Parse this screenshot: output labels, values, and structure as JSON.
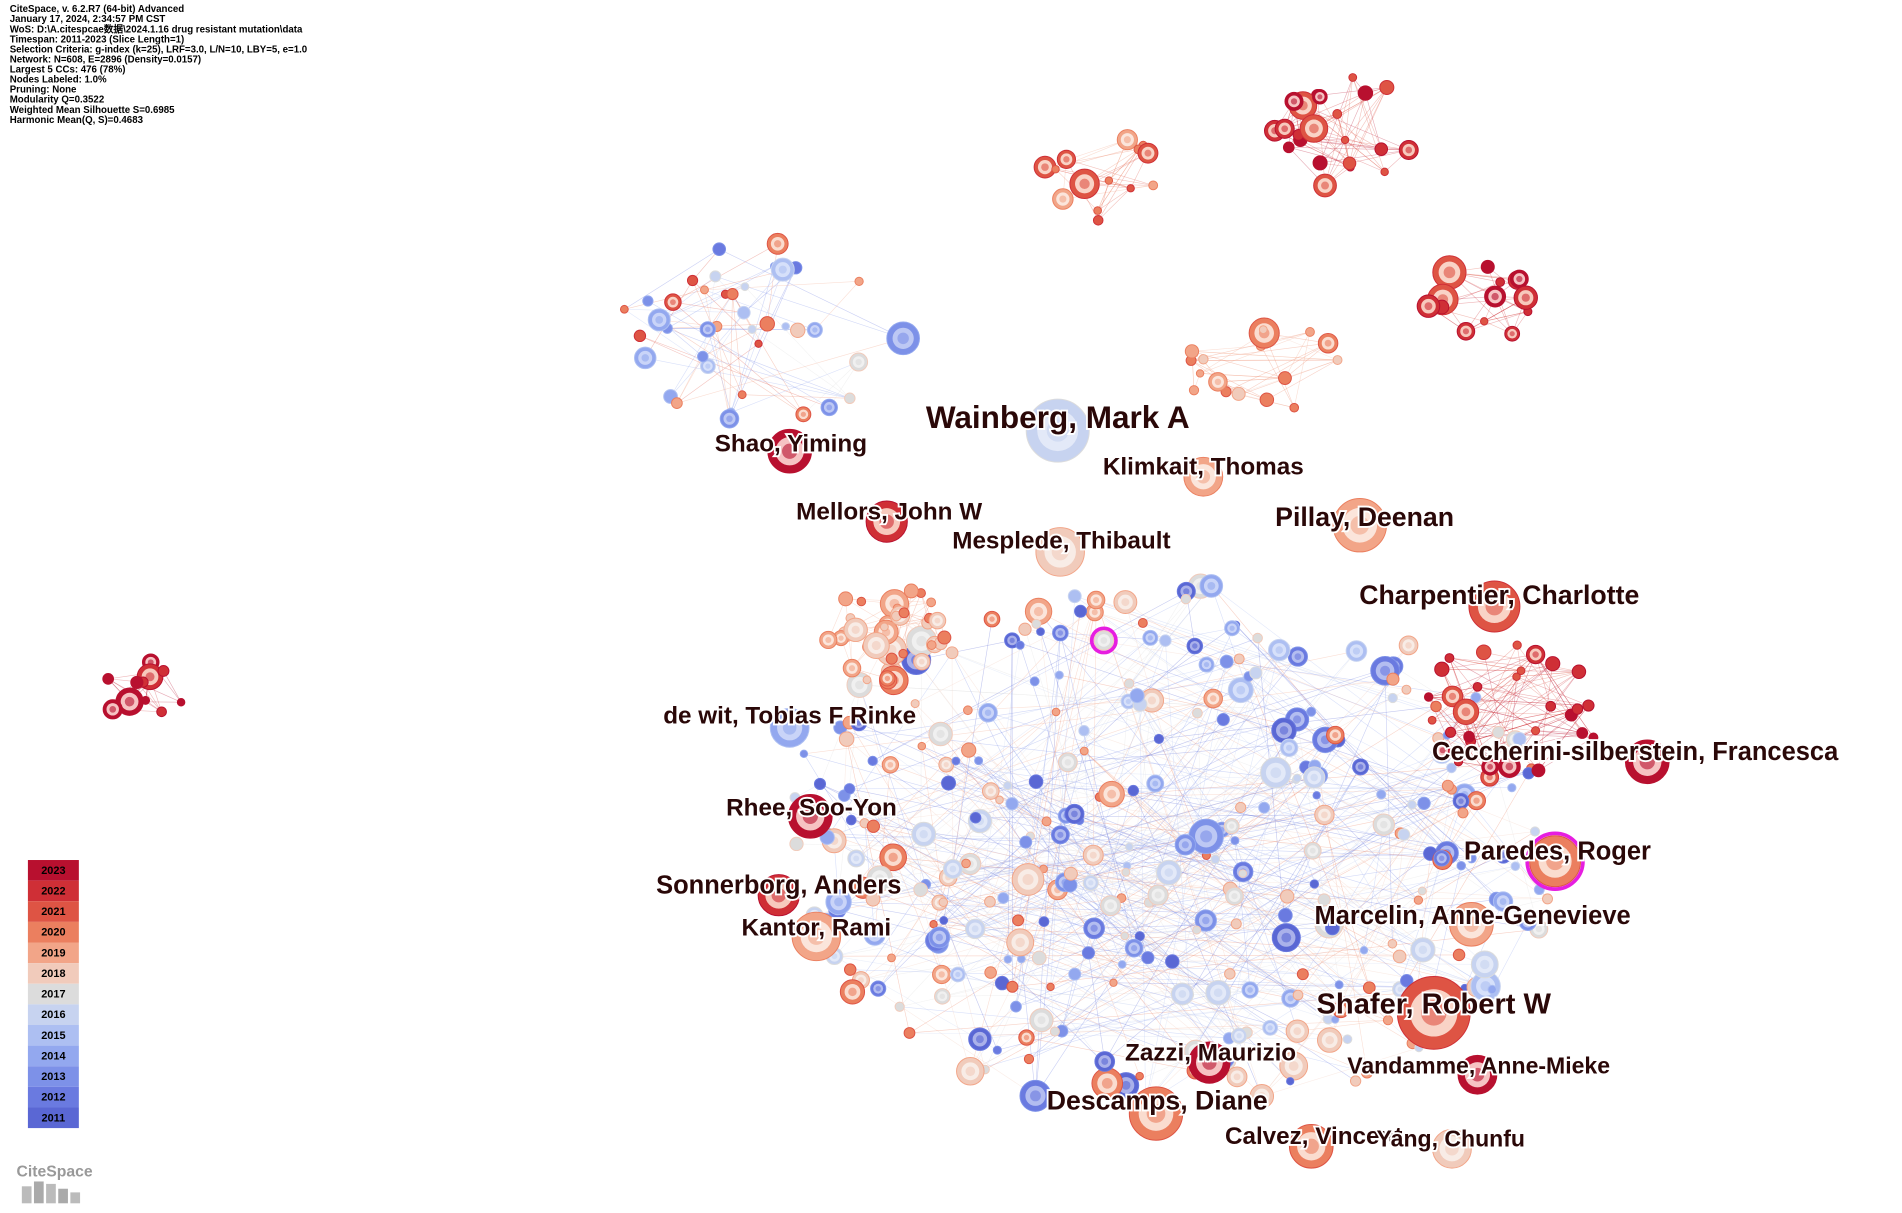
{
  "header": {
    "lines": [
      "CiteSpace, v. 6.2.R7 (64-bit) Advanced",
      "January 17, 2024, 2:34:57 PM CST",
      "WoS: D:\\A.citespcae数据\\2024.1.16 drug resistant mutation\\data",
      "Timespan: 2011-2023 (Slice Length=1)",
      "Selection Criteria: g-index (k=25), LRF=3.0, L/N=10, LBY=5, e=1.0",
      "Network: N=608, E=2896 (Density=0.0157)",
      "Largest 5 CCs: 476 (78%)",
      "Nodes Labeled: 1.0%",
      "Pruning: None",
      "Modularity Q=0.3522",
      "Weighted Mean Silhouette S=0.6985",
      "Harmonic Mean(Q, S)=0.4683"
    ]
  },
  "nodes": [
    {
      "label": "Wainberg, Mark A"
    },
    {
      "label": "Shao, Yiming"
    },
    {
      "label": "Klimkait, Thomas"
    },
    {
      "label": "Mellors, John W"
    },
    {
      "label": "Pillay, Deenan"
    },
    {
      "label": "Mesplede, Thibault"
    },
    {
      "label": "Charpentier, Charlotte"
    },
    {
      "label": "de wit, Tobias F Rinke"
    },
    {
      "label": "Ceccherini-silberstein, Francesca"
    },
    {
      "label": "Rhee, Soo-Yon"
    },
    {
      "label": "Paredes, Roger"
    },
    {
      "label": "Sonnerborg, Anders"
    },
    {
      "label": "Marcelin, Anne-Genevieve"
    },
    {
      "label": "Kantor, Rami"
    },
    {
      "label": "Shafer, Robert W"
    },
    {
      "label": "Zazzi, Maurizio"
    },
    {
      "label": "Vandamme, Anne-Mieke"
    },
    {
      "label": "Descamps, Diane"
    },
    {
      "label": "Calvez, Vincent"
    },
    {
      "label": "Yang, Chunfu"
    }
  ],
  "legend": {
    "years": [
      2023,
      2022,
      2021,
      2020,
      2019,
      2018,
      2017,
      2016,
      2015,
      2014,
      2013,
      2012,
      2011
    ]
  },
  "logo": "CiteSpace"
}
